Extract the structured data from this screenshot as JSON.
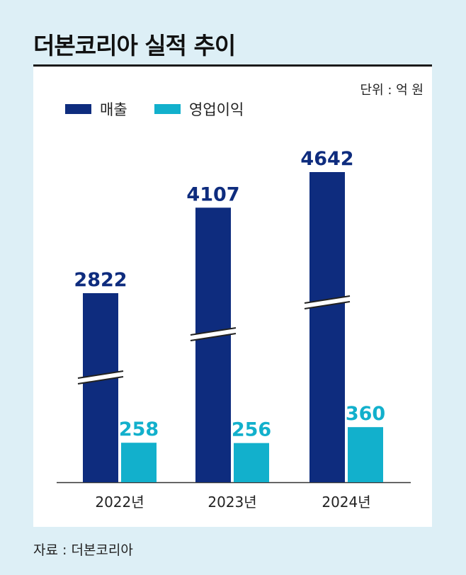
{
  "title": "더본코리아 실적 추이",
  "unit_label": "단위 : 억 원",
  "source": "자료 : 더본코리아",
  "colors": {
    "revenue": "#0e2c7e",
    "operating_profit": "#12b0cc",
    "panel": "#ffffff",
    "background": "#ddeff6"
  },
  "legend": [
    {
      "label": "매출",
      "color": "#0e2c7e"
    },
    {
      "label": "영업이익",
      "color": "#12b0cc"
    }
  ],
  "chart_data": {
    "type": "bar",
    "categories": [
      "2022년",
      "2023년",
      "2024년"
    ],
    "series": [
      {
        "name": "매출",
        "values": [
          2822,
          4107,
          4642
        ]
      },
      {
        "name": "영업이익",
        "values": [
          258,
          256,
          360
        ]
      }
    ],
    "axis_break": true,
    "grid": false,
    "legend_position": "top-left"
  }
}
